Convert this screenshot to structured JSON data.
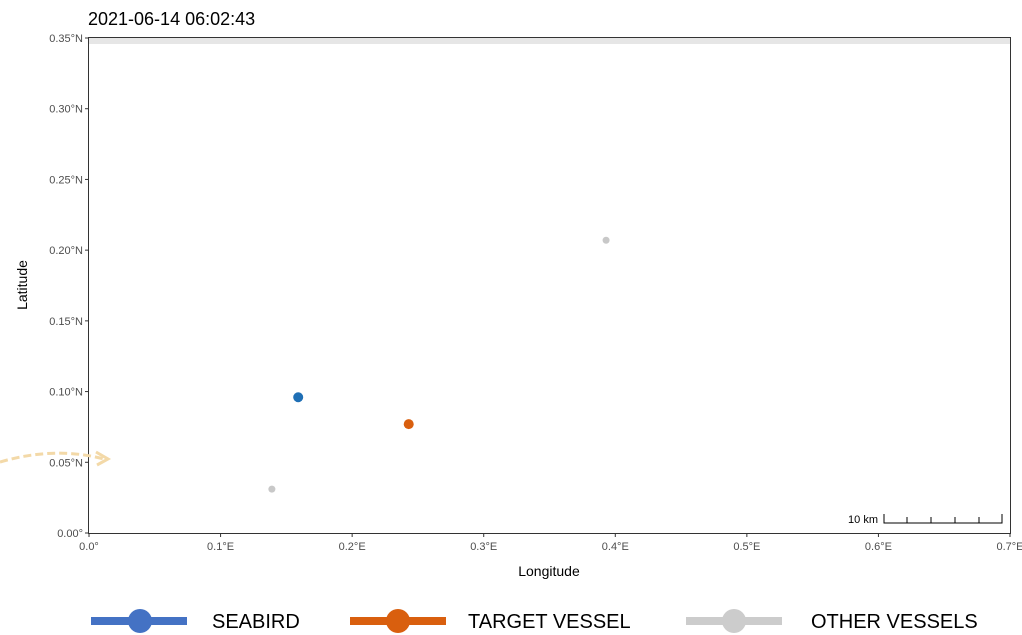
{
  "chart_data": {
    "type": "scatter",
    "title": "2021-06-14 06:02:43",
    "xlabel": "Longitude",
    "ylabel": "Latitude",
    "xlim": [
      0,
      0.7
    ],
    "ylim": [
      0,
      0.35
    ],
    "x_ticks": [
      {
        "value": 0.0,
        "label": "0.0°"
      },
      {
        "value": 0.1,
        "label": "0.1°E"
      },
      {
        "value": 0.2,
        "label": "0.2°E"
      },
      {
        "value": 0.3,
        "label": "0.3°E"
      },
      {
        "value": 0.4,
        "label": "0.4°E"
      },
      {
        "value": 0.5,
        "label": "0.5°E"
      },
      {
        "value": 0.6,
        "label": "0.6°E"
      },
      {
        "value": 0.7,
        "label": "0.7°E"
      }
    ],
    "y_ticks": [
      {
        "value": 0.0,
        "label": "0.00°"
      },
      {
        "value": 0.05,
        "label": "0.05°N"
      },
      {
        "value": 0.1,
        "label": "0.10°N"
      },
      {
        "value": 0.15,
        "label": "0.15°N"
      },
      {
        "value": 0.2,
        "label": "0.20°N"
      },
      {
        "value": 0.25,
        "label": "0.25°N"
      },
      {
        "value": 0.3,
        "label": "0.30°N"
      },
      {
        "value": 0.35,
        "label": "0.35°N"
      }
    ],
    "grid": false,
    "legend_position": "bottom",
    "series": [
      {
        "name": "SEABIRD",
        "color": "#1f6fb5",
        "legend_color": "#4472c4",
        "points": [
          {
            "x": 0.159,
            "y": 0.096
          }
        ]
      },
      {
        "name": "TARGET VESSEL",
        "color": "#d95f0e",
        "legend_color": "#d95f0e",
        "points": [
          {
            "x": 0.243,
            "y": 0.077
          }
        ]
      },
      {
        "name": "OTHER VESSELS",
        "color": "#c8c8c8",
        "legend_color": "#cccccc",
        "points": [
          {
            "x": 0.139,
            "y": 0.031
          },
          {
            "x": 0.393,
            "y": 0.207
          }
        ]
      }
    ],
    "scale_bar": {
      "label": "10 km"
    }
  }
}
